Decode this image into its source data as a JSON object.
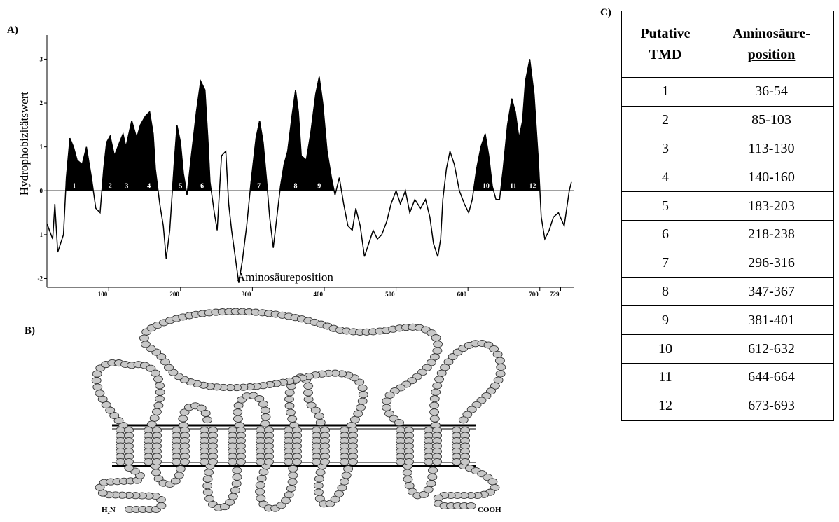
{
  "panel_labels": {
    "a": "A)",
    "b": "B)",
    "c": "C)"
  },
  "chart_data": {
    "type": "area",
    "y_label": "Hydrophobizitätswert",
    "x_label": "Aminosäureposition",
    "color": "#000000",
    "x": [
      14,
      22,
      25,
      29,
      37,
      41,
      46,
      51,
      56,
      63,
      69,
      76,
      82,
      88,
      93,
      97,
      102,
      108,
      115,
      120,
      124,
      132,
      139,
      144,
      151,
      157,
      162,
      165,
      171,
      176,
      180,
      185,
      191,
      195,
      200,
      204,
      209,
      215,
      222,
      228,
      234,
      238,
      241,
      247,
      251,
      257,
      263,
      267,
      271,
      276,
      281,
      286,
      292,
      298,
      305,
      310,
      315,
      320,
      324,
      329,
      334,
      339,
      344,
      349,
      355,
      360,
      364,
      368,
      375,
      381,
      388,
      393,
      398,
      404,
      410,
      415,
      421,
      427,
      433,
      439,
      444,
      450,
      456,
      462,
      468,
      474,
      480,
      487,
      493,
      500,
      506,
      513,
      519,
      526,
      534,
      541,
      547,
      552,
      558,
      562,
      565,
      570,
      575,
      581,
      588,
      595,
      601,
      606,
      612,
      618,
      624,
      629,
      634,
      639,
      644,
      649,
      655,
      661,
      666,
      671,
      676,
      680,
      686,
      692,
      698,
      702,
      707,
      713,
      719,
      726,
      734,
      741,
      744
    ],
    "values": [
      -0.75,
      -1.1,
      -0.3,
      -1.4,
      -1.0,
      0.3,
      1.2,
      1.0,
      0.7,
      0.6,
      1.0,
      0.3,
      -0.4,
      -0.5,
      0.5,
      1.1,
      1.25,
      0.8,
      1.1,
      1.3,
      1.0,
      1.6,
      1.2,
      1.5,
      1.7,
      1.8,
      1.3,
      0.5,
      -0.3,
      -0.8,
      -1.55,
      -0.9,
      0.6,
      1.5,
      1.1,
      0.4,
      -0.1,
      0.8,
      1.8,
      2.5,
      2.3,
      1.2,
      0.2,
      -0.5,
      -0.9,
      0.8,
      0.9,
      -0.3,
      -0.9,
      -1.5,
      -2.1,
      -1.6,
      -0.8,
      0.2,
      1.2,
      1.6,
      1.1,
      0.2,
      -0.6,
      -1.3,
      -0.6,
      0.1,
      0.6,
      0.9,
      1.7,
      2.3,
      1.8,
      0.8,
      0.7,
      1.3,
      2.2,
      2.6,
      2.0,
      0.9,
      0.3,
      -0.1,
      0.3,
      -0.3,
      -0.8,
      -0.9,
      -0.4,
      -0.8,
      -1.5,
      -1.2,
      -0.9,
      -1.1,
      -1.0,
      -0.7,
      -0.3,
      0.0,
      -0.3,
      0.0,
      -0.5,
      -0.2,
      -0.4,
      -0.2,
      -0.6,
      -1.2,
      -1.5,
      -1.1,
      -0.2,
      0.5,
      0.9,
      0.6,
      0.0,
      -0.3,
      -0.5,
      -0.2,
      0.5,
      1.0,
      1.3,
      0.8,
      0.1,
      -0.2,
      -0.2,
      0.5,
      1.5,
      2.1,
      1.8,
      1.2,
      1.6,
      2.5,
      3.0,
      2.2,
      0.7,
      -0.6,
      -1.1,
      -0.9,
      -0.6,
      -0.5,
      -0.8,
      0.0,
      0.2
    ],
    "xlim": [
      14,
      748
    ],
    "ylim": [
      -2.2,
      3.55
    ],
    "xticks": [
      100,
      200,
      300,
      400,
      500,
      600,
      700,
      729
    ],
    "yticks": [
      -2,
      -1,
      0,
      1,
      2,
      3
    ],
    "annotations": [
      {
        "text": "1",
        "x": 52
      },
      {
        "text": "2",
        "x": 102
      },
      {
        "text": "3",
        "x": 125
      },
      {
        "text": "4",
        "x": 156
      },
      {
        "text": "5",
        "x": 200
      },
      {
        "text": "6",
        "x": 230
      },
      {
        "text": "7",
        "x": 309
      },
      {
        "text": "8",
        "x": 360
      },
      {
        "text": "9",
        "x": 393
      },
      {
        "text": "10",
        "x": 625
      },
      {
        "text": "11",
        "x": 663
      },
      {
        "text": "12",
        "x": 690
      }
    ]
  },
  "diagram": {
    "n_terminus": "H₂N",
    "c_terminus": "COOH"
  },
  "table": {
    "header": [
      [
        "Putative",
        "TMD"
      ],
      [
        "Aminosäure-",
        "position"
      ]
    ],
    "rows": [
      [
        "1",
        "36-54"
      ],
      [
        "2",
        "85-103"
      ],
      [
        "3",
        "113-130"
      ],
      [
        "4",
        "140-160"
      ],
      [
        "5",
        "183-203"
      ],
      [
        "6",
        "218-238"
      ],
      [
        "7",
        "296-316"
      ],
      [
        "8",
        "347-367"
      ],
      [
        "9",
        "381-401"
      ],
      [
        "10",
        "612-632"
      ],
      [
        "11",
        "644-664"
      ],
      [
        "12",
        "673-693"
      ]
    ]
  }
}
